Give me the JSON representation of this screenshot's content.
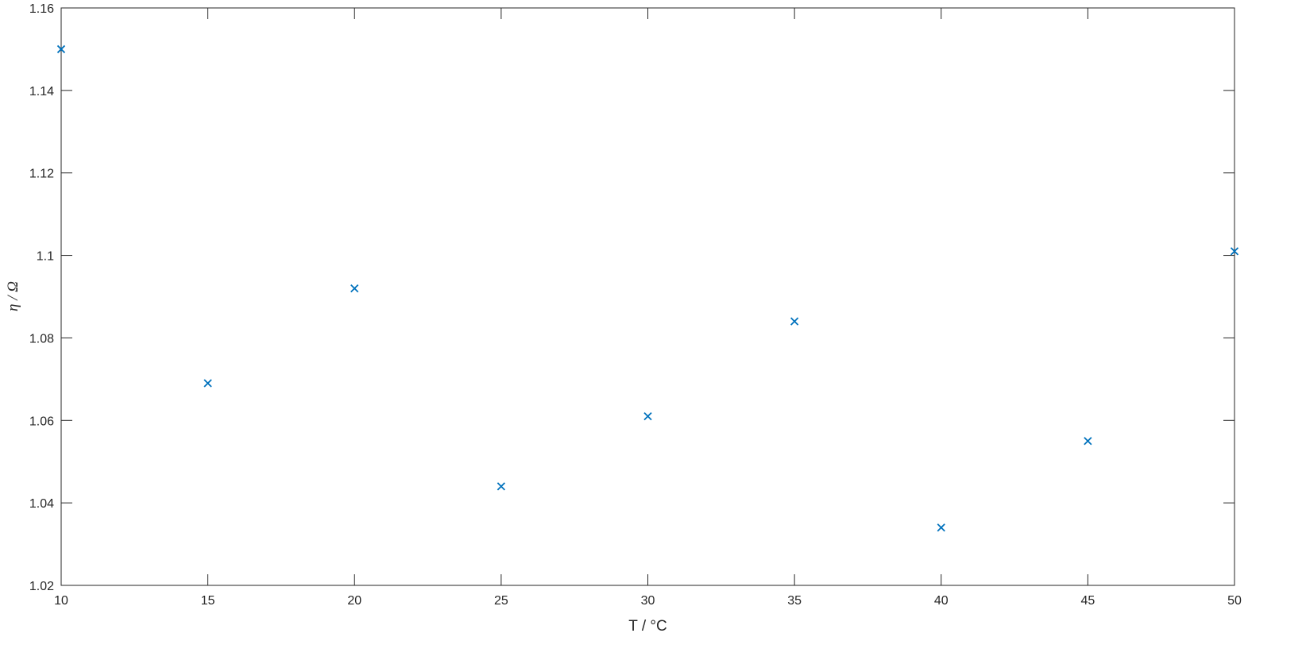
{
  "chart_data": {
    "type": "scatter",
    "title": "",
    "xlabel": "T / °C",
    "ylabel": "η / Ω",
    "xlim": [
      10,
      50
    ],
    "ylim": [
      1.02,
      1.16
    ],
    "xticks": [
      10,
      15,
      20,
      25,
      30,
      35,
      40,
      45,
      50
    ],
    "yticks": [
      1.02,
      1.04,
      1.06,
      1.08,
      1.1,
      1.12,
      1.14,
      1.16
    ],
    "ytick_labels": [
      "1.02",
      "1.04",
      "1.06",
      "1.08",
      "1.1",
      "1.12",
      "1.14",
      "1.16"
    ],
    "grid": false,
    "marker": "x",
    "color": "#0072BD",
    "x": [
      10,
      15,
      20,
      25,
      30,
      35,
      40,
      45,
      50
    ],
    "y": [
      1.15,
      1.069,
      1.092,
      1.044,
      1.061,
      1.084,
      1.034,
      1.055,
      1.101
    ]
  }
}
